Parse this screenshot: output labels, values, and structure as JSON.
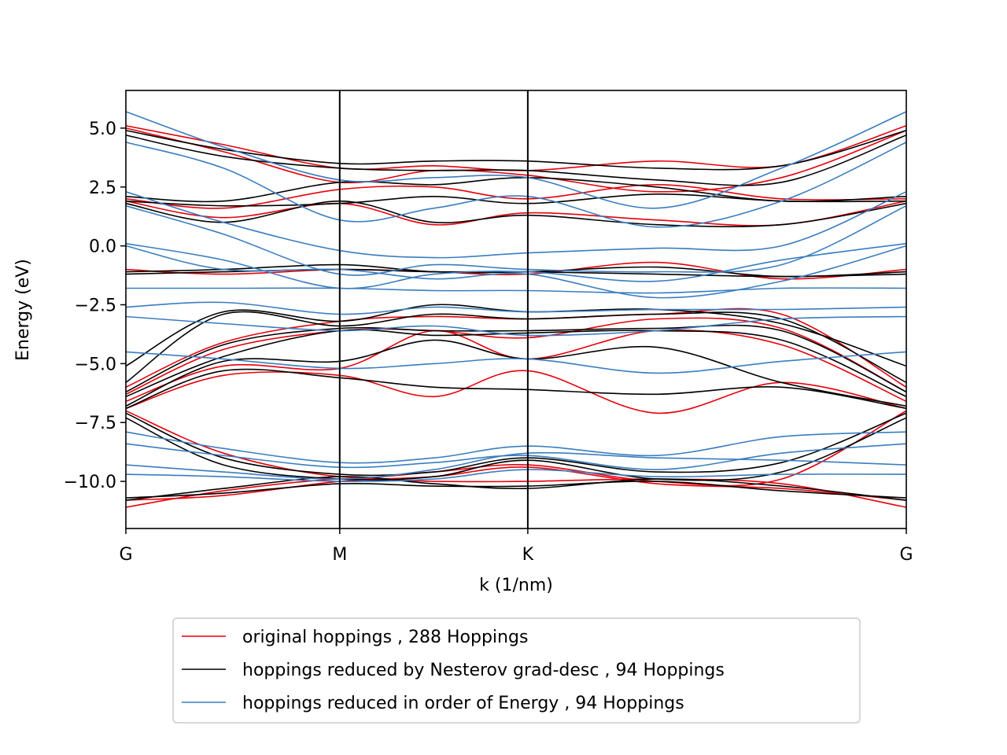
{
  "chart_data": {
    "type": "line",
    "xlabel": "k (1/nm)",
    "ylabel": "Energy (eV)",
    "ylim": [
      -12.0,
      6.6
    ],
    "ytick_values": [
      5.0,
      2.5,
      0.0,
      -2.5,
      -5.0,
      -7.5,
      -10.0
    ],
    "ytick_labels": [
      "5.0",
      "2.5",
      "0.0",
      "−2.5",
      "−5.0",
      "−7.5",
      "−10.0"
    ],
    "k_ticks": [
      "G",
      "M",
      "K",
      "G"
    ],
    "k_tick_fractions": [
      0.0,
      0.274,
      0.515,
      1.0
    ],
    "vertical_lines_at_k_ticks": [
      "M",
      "K"
    ],
    "legend_position": "below plot, centered",
    "grid": false,
    "x_sample_fractions": [
      0.0,
      0.125,
      0.274,
      0.395,
      0.515,
      0.68,
      0.84,
      1.0
    ],
    "series": [
      {
        "name": "original hoppings , 288 Hoppings",
        "color": "#e8000b",
        "bands": [
          [
            5.1,
            4.3,
            3.3,
            3.4,
            3.2,
            3.6,
            3.4,
            5.1
          ],
          [
            5.0,
            4.0,
            2.7,
            3.2,
            3.0,
            2.3,
            2.9,
            4.9
          ],
          [
            2.0,
            1.6,
            2.4,
            2.5,
            2.0,
            2.6,
            2.0,
            2.0
          ],
          [
            1.9,
            1.2,
            1.8,
            0.9,
            1.4,
            1.1,
            0.9,
            1.9
          ],
          [
            -1.0,
            -1.2,
            -1.0,
            -1.1,
            -1.2,
            -0.7,
            -1.4,
            -1.0
          ],
          [
            -6.0,
            -4.1,
            -3.2,
            -3.0,
            -3.1,
            -2.9,
            -2.9,
            -6.0
          ],
          [
            -6.3,
            -4.4,
            -3.6,
            -3.6,
            -3.9,
            -3.1,
            -3.5,
            -6.2
          ],
          [
            -6.6,
            -5.1,
            -5.2,
            -3.6,
            -4.8,
            -3.6,
            -4.2,
            -6.6
          ],
          [
            -6.9,
            -5.5,
            -5.5,
            -6.4,
            -5.3,
            -7.1,
            -5.8,
            -6.9
          ],
          [
            -7.0,
            -8.8,
            -9.8,
            -9.6,
            -9.3,
            -10.0,
            -9.9,
            -7.0
          ],
          [
            -11.1,
            -10.4,
            -9.9,
            -10.0,
            -10.0,
            -9.9,
            -10.1,
            -11.1
          ],
          [
            -10.8,
            -10.6,
            -10.0,
            -9.8,
            -9.4,
            -10.1,
            -10.3,
            -10.8
          ]
        ]
      },
      {
        "name": "hoppings reduced by Nesterov grad-desc , 94 Hoppings",
        "color": "#000000",
        "bands": [
          [
            4.9,
            4.1,
            3.5,
            3.6,
            3.6,
            3.3,
            3.4,
            4.9
          ],
          [
            4.7,
            3.8,
            3.3,
            3.2,
            3.2,
            2.8,
            2.7,
            4.7
          ],
          [
            2.1,
            1.9,
            2.7,
            2.6,
            2.9,
            2.5,
            1.9,
            2.1
          ],
          [
            1.9,
            1.7,
            1.8,
            2.1,
            1.8,
            2.2,
            1.9,
            1.9
          ],
          [
            1.8,
            1.0,
            1.9,
            1.0,
            1.3,
            0.9,
            0.9,
            1.8
          ],
          [
            -1.1,
            -1.0,
            -0.8,
            -1.1,
            -1.1,
            -0.9,
            -1.3,
            -1.1
          ],
          [
            -1.2,
            -1.1,
            -1.0,
            -1.1,
            -1.1,
            -1.2,
            -1.3,
            -1.2
          ],
          [
            -5.1,
            -2.8,
            -3.2,
            -2.5,
            -2.8,
            -2.7,
            -3.3,
            -5.1
          ],
          [
            -5.8,
            -2.9,
            -3.4,
            -2.9,
            -3.1,
            -2.9,
            -3.1,
            -5.8
          ],
          [
            -6.2,
            -4.2,
            -3.5,
            -3.6,
            -3.6,
            -3.5,
            -3.6,
            -6.2
          ],
          [
            -6.4,
            -4.7,
            -3.6,
            -3.8,
            -3.7,
            -3.6,
            -4.0,
            -6.4
          ],
          [
            -6.8,
            -4.9,
            -4.9,
            -4.0,
            -4.8,
            -4.3,
            -5.8,
            -6.8
          ],
          [
            -6.9,
            -5.3,
            -5.6,
            -6.0,
            -6.1,
            -6.3,
            -6.0,
            -6.9
          ],
          [
            -7.1,
            -9.0,
            -9.7,
            -9.6,
            -9.0,
            -9.6,
            -9.2,
            -7.1
          ],
          [
            -7.3,
            -9.3,
            -9.9,
            -9.8,
            -9.1,
            -9.9,
            -9.6,
            -7.3
          ],
          [
            -10.8,
            -10.3,
            -9.8,
            -10.1,
            -10.3,
            -9.9,
            -10.2,
            -10.8
          ],
          [
            -10.7,
            -10.5,
            -10.1,
            -10.2,
            -10.2,
            -10.0,
            -10.4,
            -10.7
          ]
        ]
      },
      {
        "name": "hoppings reduced in order of Energy , 94 Hoppings",
        "color": "#3a7dbf",
        "bands": [
          [
            5.7,
            4.2,
            2.8,
            2.9,
            2.9,
            1.6,
            3.3,
            5.7
          ],
          [
            4.4,
            3.3,
            1.1,
            1.6,
            2.1,
            0.8,
            1.9,
            4.4
          ],
          [
            2.3,
            1.0,
            -0.2,
            -0.5,
            -0.3,
            -0.1,
            0.0,
            2.3
          ],
          [
            1.7,
            0.5,
            -1.2,
            -0.8,
            -1.0,
            -1.1,
            -0.8,
            1.7
          ],
          [
            0.1,
            -0.6,
            -1.8,
            -1.2,
            -1.1,
            -1.5,
            -0.6,
            0.1
          ],
          [
            0.0,
            -1.0,
            -1.0,
            -1.4,
            -1.2,
            -2.2,
            -1.5,
            0.0
          ],
          [
            -1.8,
            -1.8,
            -1.8,
            -1.9,
            -1.9,
            -2.0,
            -1.8,
            -1.8
          ],
          [
            -2.6,
            -2.4,
            -2.9,
            -2.6,
            -2.8,
            -2.7,
            -2.7,
            -2.6
          ],
          [
            -3.0,
            -3.3,
            -3.6,
            -3.4,
            -3.8,
            -3.6,
            -3.1,
            -3.0
          ],
          [
            -4.5,
            -4.8,
            -5.2,
            -5.0,
            -4.8,
            -5.4,
            -4.9,
            -4.5
          ],
          [
            -7.9,
            -8.6,
            -9.2,
            -9.0,
            -8.5,
            -8.9,
            -8.1,
            -7.9
          ],
          [
            -8.4,
            -8.9,
            -9.4,
            -9.2,
            -8.9,
            -9.5,
            -8.8,
            -8.4
          ],
          [
            -9.3,
            -9.6,
            -9.9,
            -9.5,
            -8.8,
            -9.0,
            -9.1,
            -9.3
          ],
          [
            -9.7,
            -9.8,
            -10.0,
            -9.9,
            -9.5,
            -9.8,
            -9.7,
            -9.7
          ]
        ]
      }
    ]
  }
}
